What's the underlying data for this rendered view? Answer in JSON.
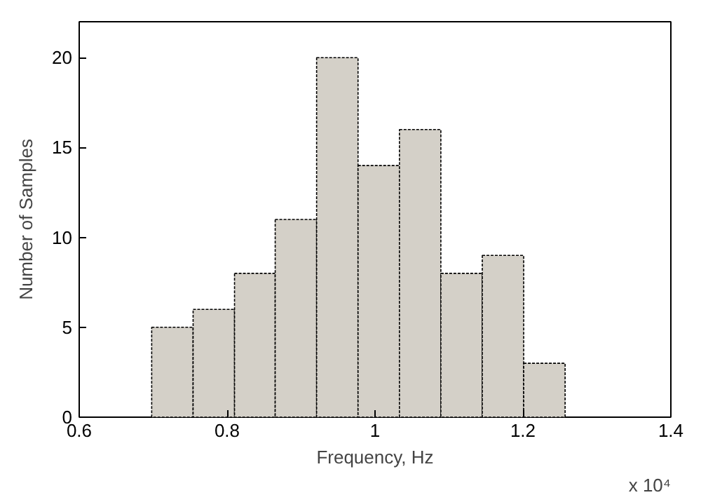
{
  "chart_data": {
    "type": "histogram",
    "xlabel": "Frequency, Hz",
    "ylabel": "Number of Samples",
    "bins": [
      0.698,
      0.754,
      0.81,
      0.865,
      0.921,
      0.977,
      1.033,
      1.089,
      1.145,
      1.201,
      1.257
    ],
    "values": [
      5,
      6,
      8,
      11,
      20,
      14,
      16,
      8,
      9,
      3
    ],
    "color": "#d4d0c8",
    "line_style": "dashed",
    "xlim": [
      0.6,
      1.4
    ],
    "xticks": [
      0.6,
      0.8,
      1,
      1.2,
      1.4
    ],
    "ylim": [
      0,
      22
    ],
    "yticks": [
      0,
      5,
      10,
      15,
      20
    ],
    "annotations": [
      "x 10⁴"
    ],
    "grid": false
  }
}
